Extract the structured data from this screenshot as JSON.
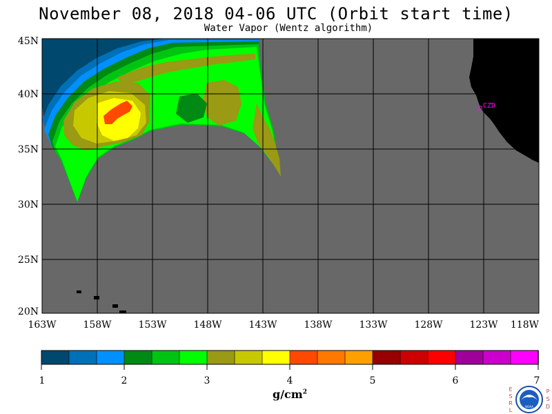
{
  "title": "November 08, 2018  04-06 UTC  (Orbit start time)",
  "subtitle": "Water Vapor (Wentz algorithm)",
  "map": {
    "lat_labels": [
      "45N",
      "40N",
      "35N",
      "30N",
      "25N",
      "20N"
    ],
    "lon_labels": [
      "163W",
      "158W",
      "153W",
      "148W",
      "143W",
      "138W",
      "133W",
      "128W",
      "123W",
      "118W"
    ],
    "station_label": "CZD",
    "colors": {
      "ocean_no_data": "#686868",
      "land": "#000000",
      "grid": "#000000",
      "station": "#ff00ff"
    }
  },
  "colorbar": {
    "tick_labels": [
      "1",
      "2",
      "3",
      "4",
      "5",
      "6",
      "7"
    ],
    "colors": [
      "#00486e",
      "#0070b8",
      "#0090ff",
      "#008a14",
      "#00c412",
      "#00ff00",
      "#9a9a14",
      "#c8c800",
      "#ffff00",
      "#ff4800",
      "#ff7800",
      "#ffa000",
      "#960000",
      "#cc0000",
      "#ff0000",
      "#a0009a",
      "#cc00cc",
      "#ff00ff"
    ]
  },
  "units": {
    "base": "g/cm",
    "exponent": "2"
  },
  "logo": {
    "left_letters": [
      "E",
      "S",
      "R",
      "L"
    ],
    "right_letters": [
      "P",
      "S",
      "D"
    ],
    "center": "NOAA"
  }
}
